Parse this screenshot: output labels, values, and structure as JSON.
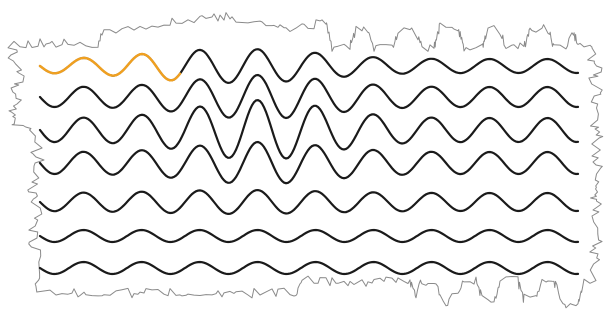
{
  "colors": {
    "background": "#ffffff",
    "wave": "#1a1a1a",
    "highlight": "#f0a020",
    "outline": "#8a8a8a"
  },
  "puzzle": {
    "wave_count": 7,
    "highlighted_wave": 0,
    "highlight_progress": 0.26
  }
}
